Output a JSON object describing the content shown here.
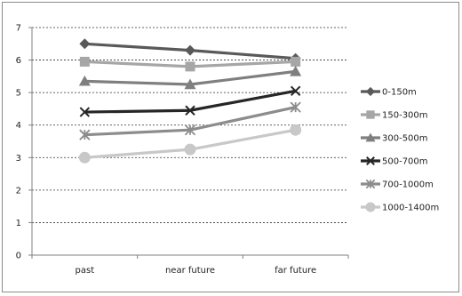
{
  "chart_data": {
    "type": "line",
    "categories": [
      "past",
      "near future",
      "far future"
    ],
    "ylim": [
      0,
      7
    ],
    "yticks": [
      0,
      1,
      2,
      3,
      4,
      5,
      6,
      7
    ],
    "grid": "horizontal-dashed",
    "legend_position": "right",
    "series": [
      {
        "name": "0-150m",
        "values": [
          6.5,
          6.3,
          6.05
        ],
        "color": "#595959",
        "marker": "diamond"
      },
      {
        "name": "150-300m",
        "values": [
          5.95,
          5.8,
          5.95
        ],
        "color": "#a6a6a6",
        "marker": "square"
      },
      {
        "name": "300-500m",
        "values": [
          5.35,
          5.25,
          5.65
        ],
        "color": "#7f7f7f",
        "marker": "triangle"
      },
      {
        "name": "500-700m",
        "values": [
          4.4,
          4.45,
          5.05
        ],
        "color": "#262626",
        "marker": "x"
      },
      {
        "name": "700-1000m",
        "values": [
          3.7,
          3.85,
          4.55
        ],
        "color": "#8c8c8c",
        "marker": "asterisk"
      },
      {
        "name": "1000-1400m",
        "values": [
          3.0,
          3.25,
          3.85
        ],
        "color": "#c8c8c8",
        "marker": "circle"
      }
    ]
  }
}
